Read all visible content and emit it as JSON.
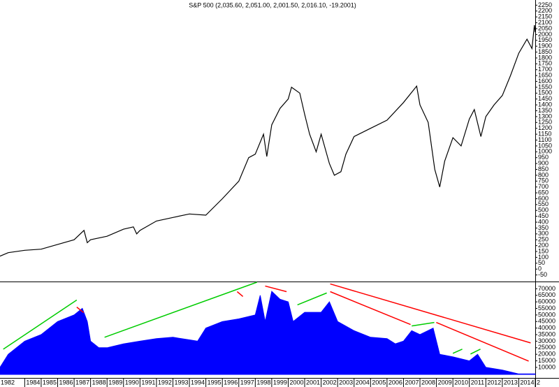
{
  "chart_data": [
    {
      "type": "line",
      "title": "S&P 500 (2,035.60, 2,051.00, 2,001.50, 2,016.10, -19.2001)",
      "color": "#000000",
      "xlim": [
        1982.5,
        2015
      ],
      "ylim": [
        -100,
        2300
      ],
      "yticks": [
        -50,
        0,
        50,
        100,
        150,
        200,
        250,
        300,
        350,
        400,
        450,
        500,
        550,
        600,
        650,
        700,
        750,
        800,
        850,
        900,
        950,
        1000,
        1050,
        1100,
        1150,
        1200,
        1250,
        1300,
        1350,
        1400,
        1450,
        1500,
        1550,
        1600,
        1650,
        1700,
        1750,
        1800,
        1850,
        1900,
        1950,
        2000,
        2050,
        2100,
        2150,
        2200,
        2250
      ],
      "x": [
        1982.5,
        1983,
        1984,
        1985,
        1986,
        1987,
        1987.6,
        1987.8,
        1988,
        1989,
        1990,
        1990.6,
        1990.8,
        1991,
        1992,
        1993,
        1994,
        1995,
        1996,
        1997,
        1997.6,
        1998,
        1998.5,
        1998.7,
        1999,
        1999.5,
        2000,
        2000.2,
        2000.7,
        2001,
        2001.3,
        2001.7,
        2002,
        2002.5,
        2002.8,
        2003.2,
        2003.5,
        2004,
        2005,
        2006,
        2007,
        2007.8,
        2008,
        2008.5,
        2008.9,
        2009.2,
        2009.5,
        2010,
        2010.5,
        2011,
        2011.3,
        2011.7,
        2012,
        2012.5,
        2013,
        2013.5,
        2014,
        2014.5,
        2014.8,
        2014.95,
        2015
      ],
      "values": [
        110,
        140,
        160,
        170,
        210,
        250,
        330,
        225,
        250,
        280,
        340,
        360,
        300,
        330,
        410,
        440,
        470,
        460,
        600,
        750,
        950,
        980,
        1150,
        960,
        1230,
        1370,
        1450,
        1550,
        1500,
        1320,
        1150,
        1000,
        1150,
        900,
        800,
        830,
        980,
        1130,
        1200,
        1270,
        1420,
        1560,
        1400,
        1250,
        850,
        700,
        920,
        1120,
        1050,
        1280,
        1360,
        1130,
        1300,
        1400,
        1480,
        1650,
        1840,
        1960,
        1880,
        2080,
        2020
      ]
    },
    {
      "type": "area",
      "color": "#0000ff",
      "xlim": [
        1982.5,
        2015
      ],
      "ylim": [
        2500,
        75000
      ],
      "yticks": [
        10000,
        15000,
        20000,
        25000,
        30000,
        35000,
        40000,
        45000,
        50000,
        55000,
        60000,
        65000,
        70000
      ],
      "xticks": [
        1982,
        1984,
        1985,
        1986,
        1987,
        1988,
        1989,
        1990,
        1991,
        1992,
        1993,
        1994,
        1995,
        1996,
        1997,
        1998,
        1999,
        2000,
        2001,
        2002,
        2003,
        2004,
        2005,
        2006,
        2007,
        2008,
        2009,
        2010,
        2011,
        2012,
        2013,
        2014,
        {
          "value": 2015,
          "label": "2"
        }
      ],
      "x": [
        1982.5,
        1983,
        1984,
        1985,
        1986,
        1987,
        1987.5,
        1987.8,
        1988,
        1988.5,
        1989,
        1990,
        1991,
        1992,
        1993,
        1994,
        1994.5,
        1995,
        1996,
        1997,
        1998,
        1998.3,
        1998.6,
        1999,
        1999.5,
        2000,
        2000.3,
        2001,
        2002,
        2002.5,
        2003,
        2004,
        2005,
        2006,
        2006.5,
        2007,
        2007.5,
        2008,
        2008.8,
        2009.2,
        2010,
        2011,
        2011.5,
        2012,
        2013,
        2014,
        2015
      ],
      "values": [
        10000,
        20000,
        30000,
        35000,
        45000,
        50000,
        55000,
        45000,
        30000,
        25000,
        25000,
        28000,
        30000,
        32000,
        33000,
        31000,
        30000,
        40000,
        45000,
        47000,
        50000,
        65000,
        45000,
        68000,
        62000,
        60000,
        45000,
        52000,
        52000,
        60000,
        45000,
        38000,
        33000,
        32000,
        28000,
        30000,
        38000,
        35000,
        40000,
        20000,
        18000,
        15000,
        20000,
        10000,
        8000,
        5000,
        5000
      ],
      "trendlines": [
        {
          "color": "#00cc00",
          "x": [
            1982.7,
            1987.16
          ],
          "values": [
            23900,
            61400
          ]
        },
        {
          "color": "#ff0000",
          "x": [
            1987.16,
            1987.58
          ],
          "values": [
            56000,
            51800
          ]
        },
        {
          "color": "#00cc00",
          "x": [
            1988.85,
            1998.1
          ],
          "values": [
            33000,
            75000
          ]
        },
        {
          "color": "#ff0000",
          "x": [
            1996.9,
            1997.25
          ],
          "values": [
            67800,
            64100
          ]
        },
        {
          "color": "#ff0000",
          "x": [
            1998.6,
            1999.9
          ],
          "values": [
            72100,
            67800
          ]
        },
        {
          "color": "#00cc00",
          "x": [
            2000.56,
            2002.34
          ],
          "values": [
            57700,
            66800
          ]
        },
        {
          "color": "#ff0000",
          "x": [
            2002.55,
            2014.72
          ],
          "values": [
            73700,
            28700
          ]
        },
        {
          "color": "#ff0000",
          "x": [
            2002.55,
            2007.43
          ],
          "values": [
            67800,
            42700
          ]
        },
        {
          "color": "#00cc00",
          "x": [
            2007.5,
            2008.87
          ],
          "values": [
            41600,
            44300
          ]
        },
        {
          "color": "#ff0000",
          "x": [
            2008.99,
            2014.6
          ],
          "values": [
            44300,
            14800
          ]
        },
        {
          "color": "#00cc00",
          "x": [
            2010.0,
            2010.57
          ],
          "values": [
            20700,
            23900
          ]
        },
        {
          "color": "#00cc00",
          "x": [
            2011.07,
            2011.67
          ],
          "values": [
            20200,
            23900
          ]
        }
      ]
    }
  ]
}
